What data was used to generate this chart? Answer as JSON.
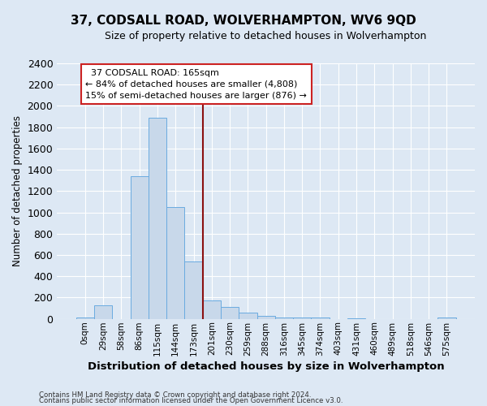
{
  "title": "37, CODSALL ROAD, WOLVERHAMPTON, WV6 9QD",
  "subtitle": "Size of property relative to detached houses in Wolverhampton",
  "xlabel": "Distribution of detached houses by size in Wolverhampton",
  "ylabel": "Number of detached properties",
  "footnote1": "Contains HM Land Registry data © Crown copyright and database right 2024.",
  "footnote2": "Contains public sector information licensed under the Open Government Licence v3.0.",
  "bin_labels": [
    "0sqm",
    "29sqm",
    "58sqm",
    "86sqm",
    "115sqm",
    "144sqm",
    "173sqm",
    "201sqm",
    "230sqm",
    "259sqm",
    "288sqm",
    "316sqm",
    "345sqm",
    "374sqm",
    "403sqm",
    "431sqm",
    "460sqm",
    "489sqm",
    "518sqm",
    "546sqm",
    "575sqm"
  ],
  "bar_values": [
    10,
    130,
    0,
    1340,
    1890,
    1050,
    540,
    170,
    110,
    60,
    25,
    15,
    10,
    10,
    0,
    8,
    0,
    0,
    0,
    0,
    15
  ],
  "bar_color": "#c8d8ea",
  "bar_edge_color": "#6aabe0",
  "vline_x": 6.5,
  "vline_color": "#8b1010",
  "annotation_text": "  37 CODSALL ROAD: 165sqm\n← 84% of detached houses are smaller (4,808)\n15% of semi-detached houses are larger (876) →",
  "annotation_box_color": "white",
  "annotation_box_edge": "#cc2222",
  "ylim": [
    0,
    2400
  ],
  "background_color": "#dde8f4",
  "plot_bg_color": "#dde8f4",
  "grid_color": "white",
  "yticks": [
    0,
    200,
    400,
    600,
    800,
    1000,
    1200,
    1400,
    1600,
    1800,
    2000,
    2200,
    2400
  ]
}
